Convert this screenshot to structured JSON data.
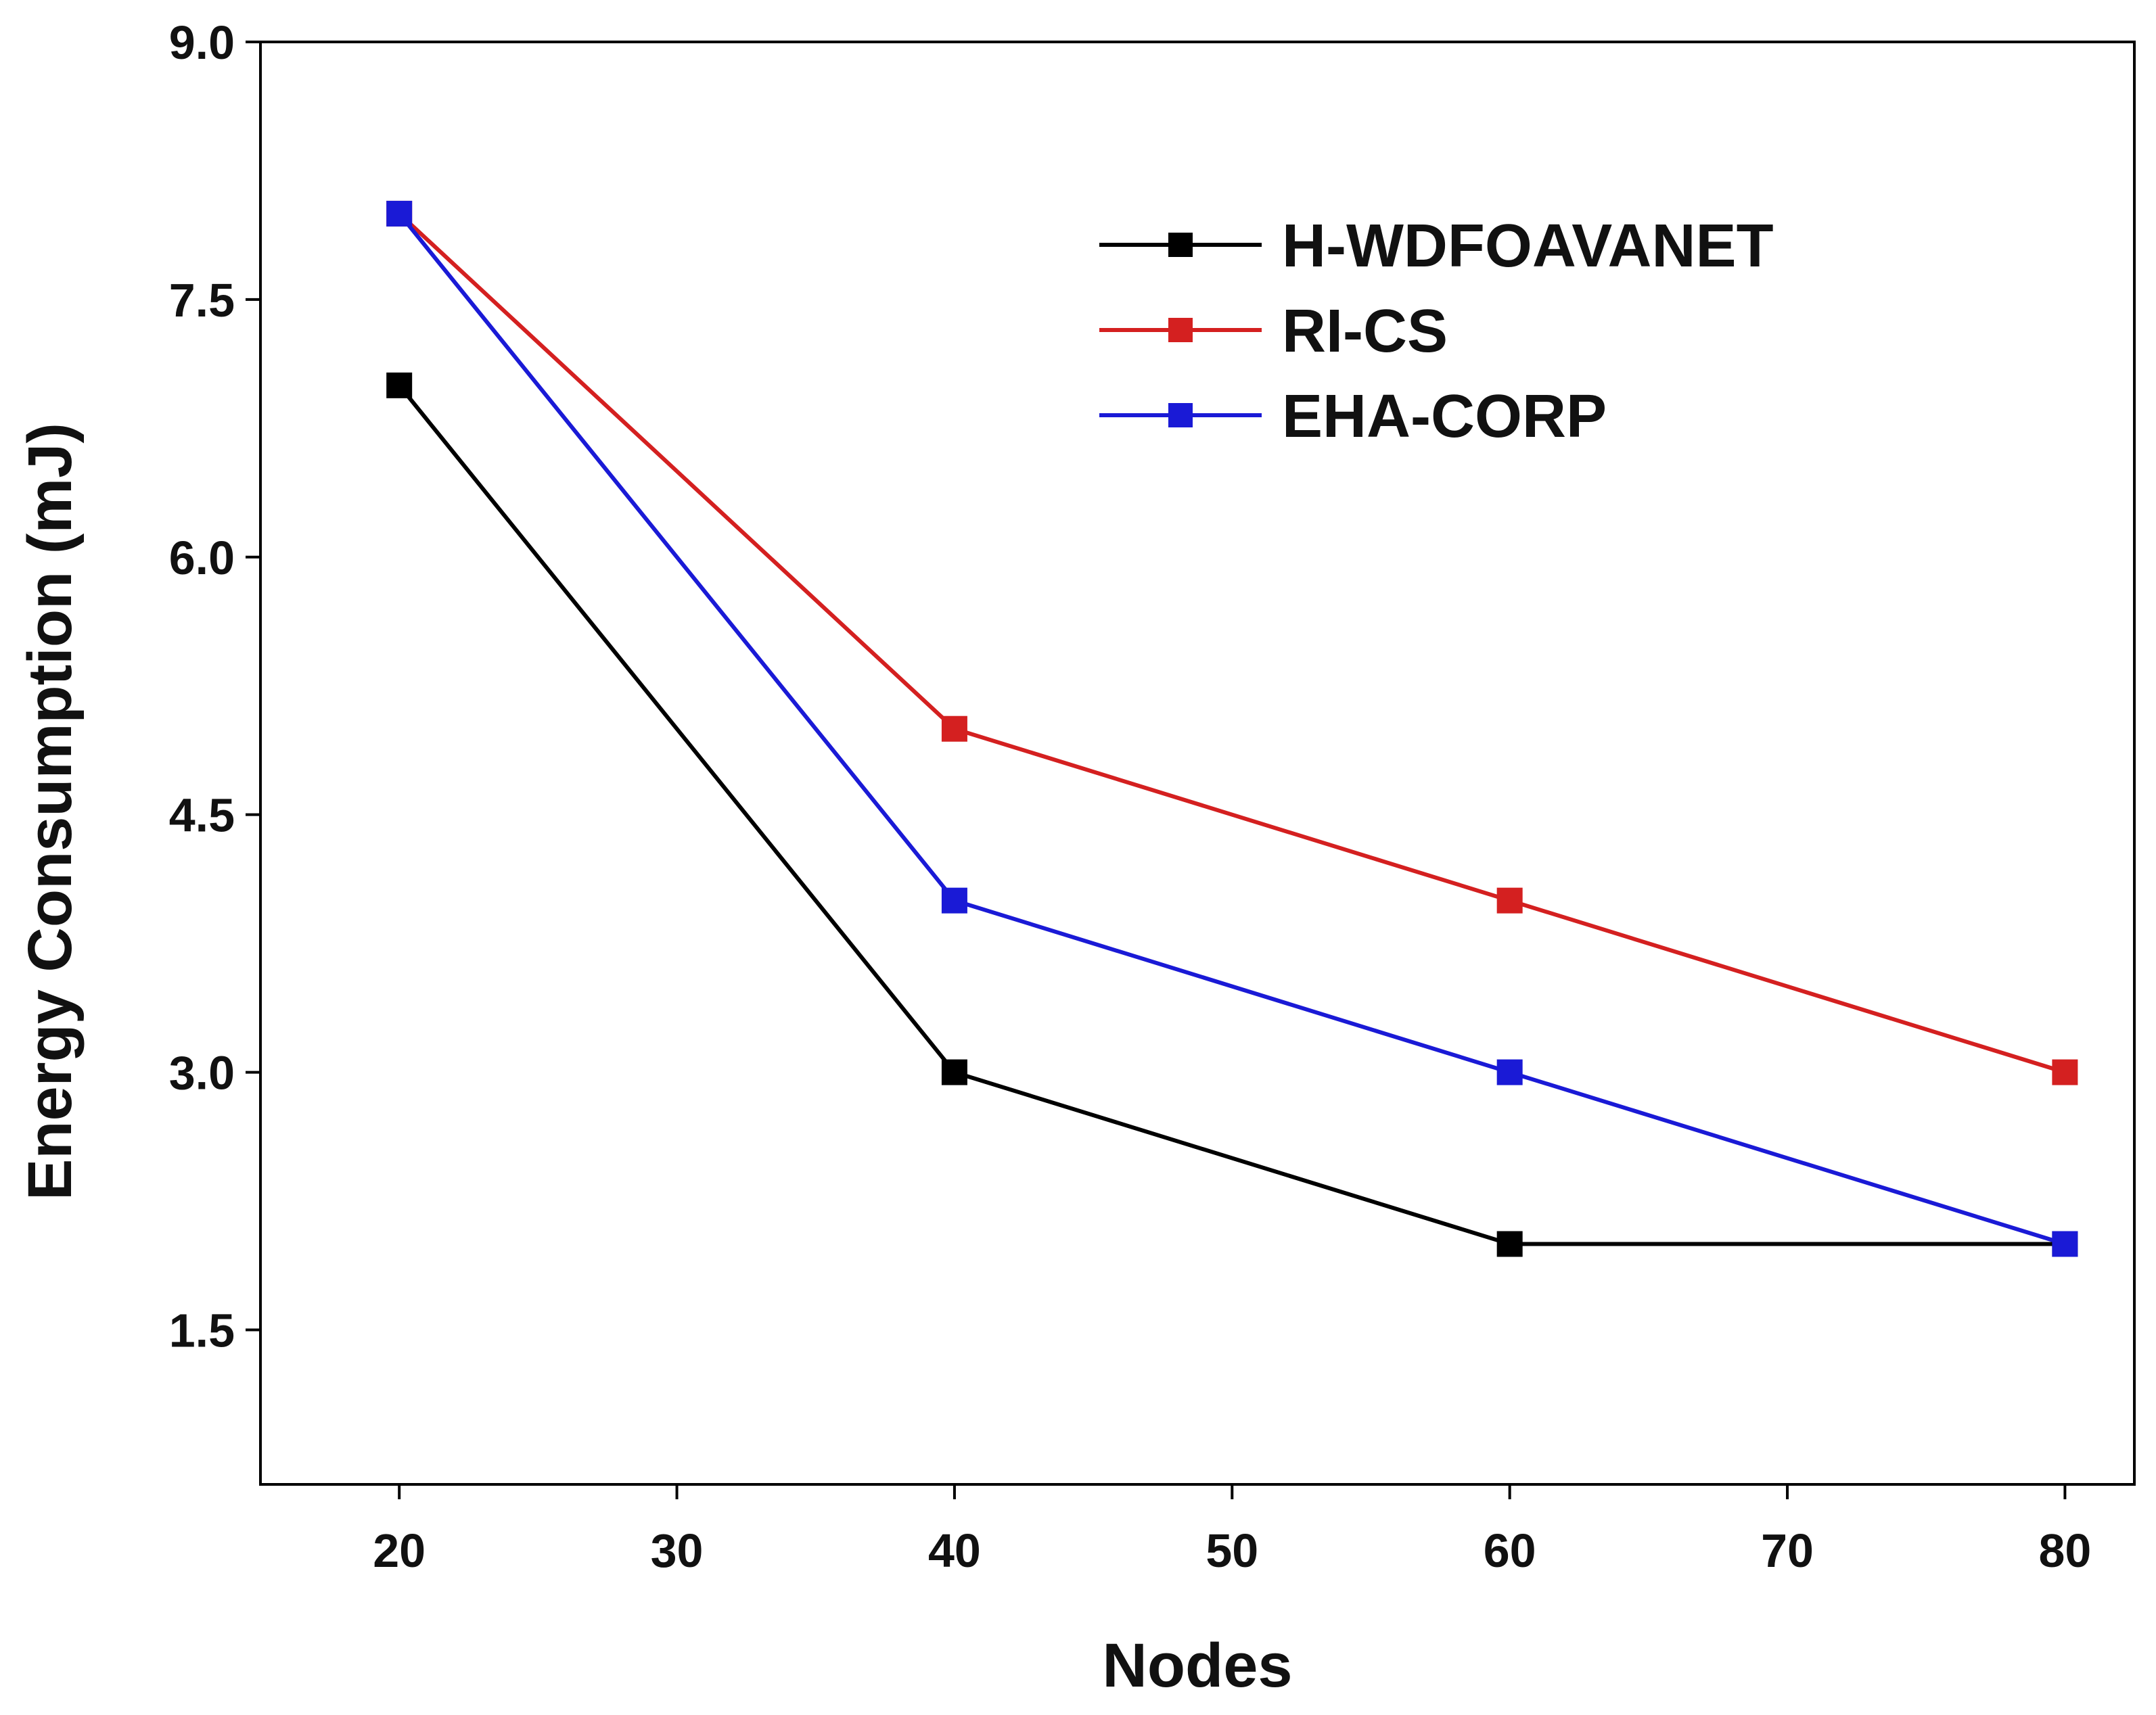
{
  "chart_data": {
    "type": "line",
    "title": "",
    "xlabel": "Nodes",
    "ylabel": "Energy Consumption (mJ)",
    "xlim": [
      15,
      82.5
    ],
    "ylim": [
      0.6,
      9.0
    ],
    "xticks": [
      20,
      30,
      40,
      50,
      60,
      70,
      80
    ],
    "yticks": [
      1.5,
      3.0,
      4.5,
      6.0,
      7.5,
      9.0
    ],
    "xtick_labels": [
      "20",
      "30",
      "40",
      "50",
      "60",
      "70",
      "80"
    ],
    "ytick_labels": [
      "1.5",
      "3.0",
      "4.5",
      "6.0",
      "7.5",
      "9.0"
    ],
    "x": [
      20,
      40,
      60,
      80
    ],
    "grid": false,
    "legend_position": "top-right",
    "series": [
      {
        "name": "H-WDFOAVANET",
        "color": "#000000",
        "marker": "square",
        "values": [
          7.0,
          3.0,
          2.0,
          2.0
        ]
      },
      {
        "name": "RI-CS",
        "color": "#d42020",
        "marker": "square",
        "values": [
          8.0,
          5.0,
          4.0,
          3.0
        ]
      },
      {
        "name": "EHA-CORP",
        "color": "#1a1ad6",
        "marker": "square",
        "values": [
          8.0,
          4.0,
          3.0,
          2.0
        ]
      }
    ]
  }
}
